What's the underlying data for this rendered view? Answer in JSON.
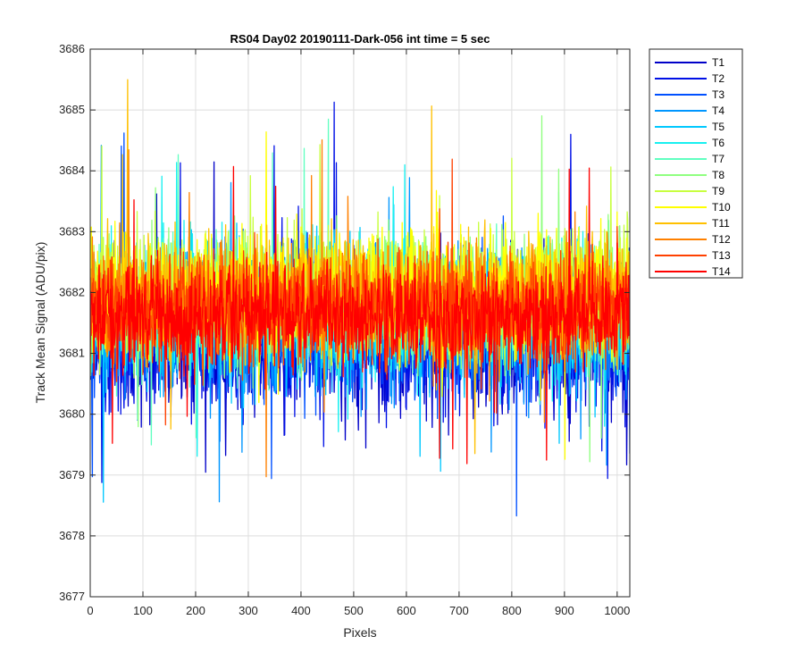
{
  "chart_data": {
    "type": "line",
    "title": "RS04 Day02 20190111-Dark-056 int time = 5 sec",
    "xlabel": "Pixels",
    "ylabel": "Track Mean Signal (ADU/pix)",
    "xlim": [
      0,
      1024
    ],
    "ylim": [
      3677,
      3686
    ],
    "xticks": [
      "0",
      "100",
      "200",
      "300",
      "400",
      "500",
      "600",
      "700",
      "800",
      "900",
      "1000"
    ],
    "yticks": [
      "3677",
      "3678",
      "3679",
      "3680",
      "3681",
      "3682",
      "3683",
      "3684",
      "3685",
      "3686"
    ],
    "grid": true,
    "legend_position": "outside-top-right",
    "series": [
      {
        "name": "T1",
        "color": "#0000c8",
        "mean": 3681.2,
        "spread": 1.1
      },
      {
        "name": "T2",
        "color": "#0010e6",
        "mean": 3681.3,
        "spread": 1.1
      },
      {
        "name": "T3",
        "color": "#0050ff",
        "mean": 3681.4,
        "spread": 1.0
      },
      {
        "name": "T4",
        "color": "#0096ff",
        "mean": 3681.5,
        "spread": 1.0
      },
      {
        "name": "T5",
        "color": "#00c8ff",
        "mean": 3681.6,
        "spread": 1.0
      },
      {
        "name": "T6",
        "color": "#18f0f0",
        "mean": 3681.7,
        "spread": 1.0
      },
      {
        "name": "T7",
        "color": "#60ffc0",
        "mean": 3681.8,
        "spread": 0.95
      },
      {
        "name": "T8",
        "color": "#90ff80",
        "mean": 3681.9,
        "spread": 0.95
      },
      {
        "name": "T9",
        "color": "#c8ff40",
        "mean": 3682.0,
        "spread": 0.95
      },
      {
        "name": "T10",
        "color": "#ffff00",
        "mean": 3682.0,
        "spread": 0.9
      },
      {
        "name": "T11",
        "color": "#ffc000",
        "mean": 3681.9,
        "spread": 0.9
      },
      {
        "name": "T12",
        "color": "#ff8000",
        "mean": 3681.8,
        "spread": 0.85
      },
      {
        "name": "T13",
        "color": "#ff4000",
        "mean": 3681.7,
        "spread": 0.8
      },
      {
        "name": "T14",
        "color": "#ff0000",
        "mean": 3681.6,
        "spread": 0.75
      }
    ]
  }
}
